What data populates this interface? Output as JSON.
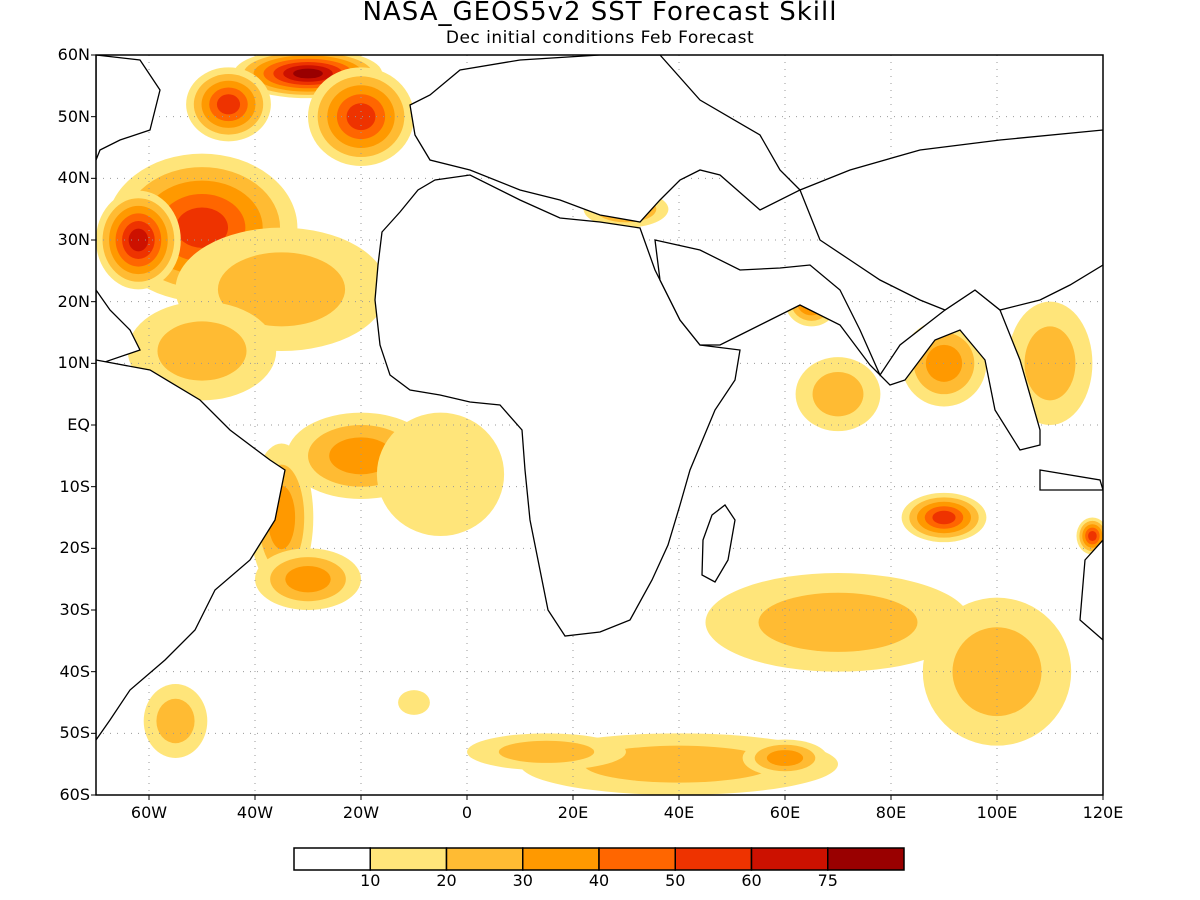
{
  "title": "NASA_GEOS5v2  SST Forecast Skill",
  "subtitle": "Dec initial conditions  Feb Forecast",
  "map": {
    "lon_range": [
      -70,
      120
    ],
    "lat_range": [
      -60,
      60
    ],
    "lat_labels": [
      "60N",
      "50N",
      "40N",
      "30N",
      "20N",
      "10N",
      "EQ",
      "10S",
      "20S",
      "30S",
      "40S",
      "50S",
      "60S"
    ],
    "lat_values": [
      60,
      50,
      40,
      30,
      20,
      10,
      0,
      -10,
      -20,
      -30,
      -40,
      -50,
      -60
    ],
    "lon_labels": [
      "60W",
      "40W",
      "20W",
      "0",
      "20E",
      "40E",
      "60E",
      "80E",
      "100E",
      "120E"
    ],
    "lon_values": [
      -60,
      -40,
      -20,
      0,
      20,
      40,
      60,
      80,
      100,
      120
    ],
    "grid": "dotted"
  },
  "colorbar": {
    "colors": [
      "#ffffff",
      "#ffe57a",
      "#ffbb33",
      "#ff9900",
      "#ff6600",
      "#ee3300",
      "#cc1100",
      "#990000"
    ],
    "labels": [
      "10",
      "20",
      "30",
      "40",
      "50",
      "60",
      "75"
    ]
  },
  "skill_regions": [
    {
      "lon": -50,
      "lat": 32,
      "rx": 18,
      "ry": 12,
      "level": 5
    },
    {
      "lon": -62,
      "lat": 30,
      "rx": 8,
      "ry": 8,
      "level": 6
    },
    {
      "lon": -30,
      "lat": 57,
      "rx": 14,
      "ry": 4,
      "level": 7
    },
    {
      "lon": -20,
      "lat": 50,
      "rx": 10,
      "ry": 8,
      "level": 5
    },
    {
      "lon": -45,
      "lat": 52,
      "rx": 8,
      "ry": 6,
      "level": 5
    },
    {
      "lon": -35,
      "lat": 22,
      "rx": 20,
      "ry": 10,
      "level": 2
    },
    {
      "lon": -50,
      "lat": 12,
      "rx": 14,
      "ry": 8,
      "level": 2
    },
    {
      "lon": -20,
      "lat": -5,
      "rx": 14,
      "ry": 7,
      "level": 3
    },
    {
      "lon": -35,
      "lat": -15,
      "rx": 6,
      "ry": 12,
      "level": 3
    },
    {
      "lon": -30,
      "lat": -25,
      "rx": 10,
      "ry": 5,
      "level": 3
    },
    {
      "lon": -5,
      "lat": -8,
      "rx": 12,
      "ry": 10,
      "level": 1
    },
    {
      "lon": 65,
      "lat": 20,
      "rx": 5,
      "ry": 4,
      "level": 4
    },
    {
      "lon": 90,
      "lat": -15,
      "rx": 8,
      "ry": 4,
      "level": 5
    },
    {
      "lon": 90,
      "lat": 10,
      "rx": 8,
      "ry": 7,
      "level": 3
    },
    {
      "lon": 70,
      "lat": 5,
      "rx": 8,
      "ry": 6,
      "level": 2
    },
    {
      "lon": 70,
      "lat": -32,
      "rx": 25,
      "ry": 8,
      "level": 2
    },
    {
      "lon": 100,
      "lat": -40,
      "rx": 14,
      "ry": 12,
      "level": 2
    },
    {
      "lon": 40,
      "lat": -55,
      "rx": 30,
      "ry": 5,
      "level": 2
    },
    {
      "lon": 60,
      "lat": -54,
      "rx": 8,
      "ry": 3,
      "level": 3
    },
    {
      "lon": 15,
      "lat": -53,
      "rx": 15,
      "ry": 3,
      "level": 2
    },
    {
      "lon": 110,
      "lat": 10,
      "rx": 8,
      "ry": 10,
      "level": 2
    },
    {
      "lon": 30,
      "lat": 35,
      "rx": 8,
      "ry": 3,
      "level": 3
    },
    {
      "lon": -10,
      "lat": -45,
      "rx": 3,
      "ry": 2,
      "level": 1
    },
    {
      "lon": -55,
      "lat": -48,
      "rx": 6,
      "ry": 6,
      "level": 2
    },
    {
      "lon": 118,
      "lat": -18,
      "rx": 3,
      "ry": 3,
      "level": 5
    }
  ]
}
